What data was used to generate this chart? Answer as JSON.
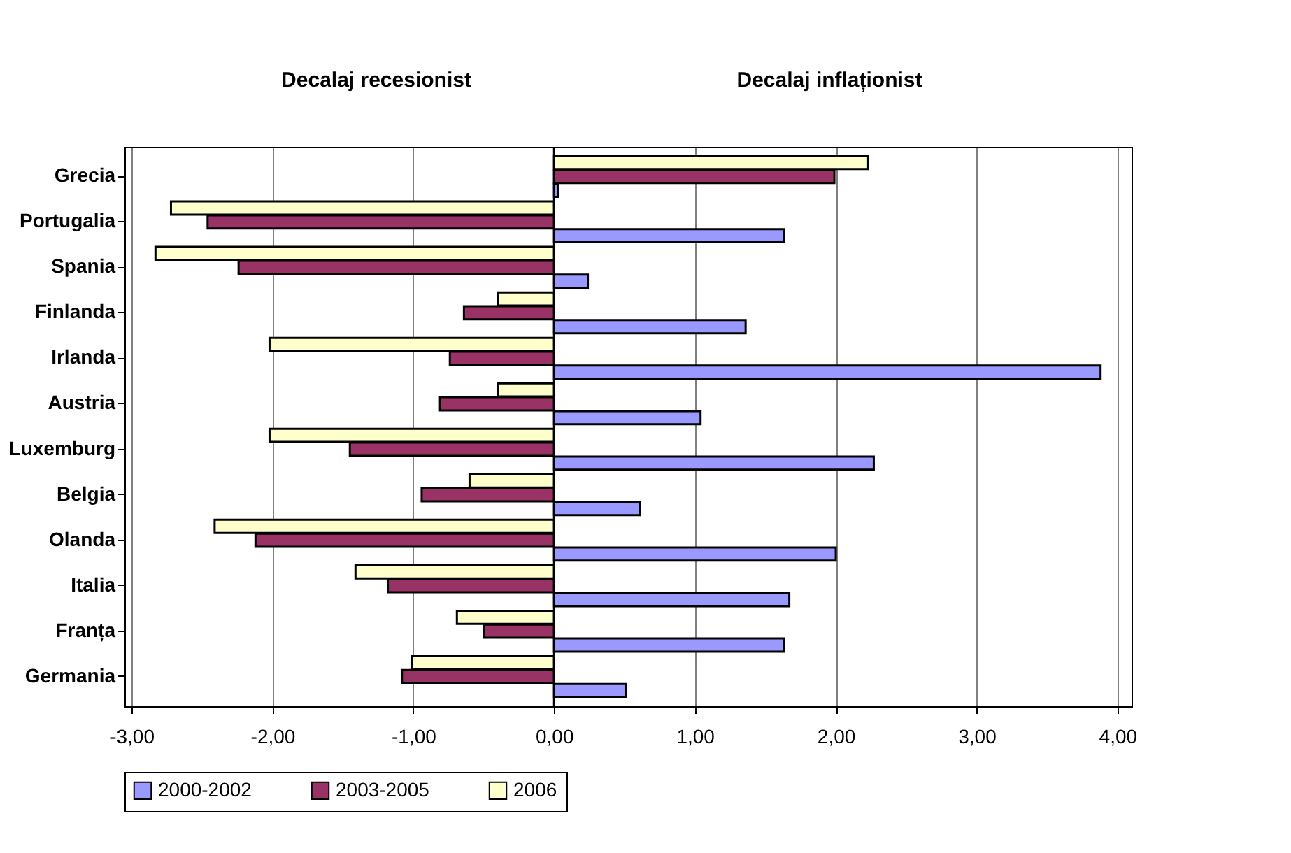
{
  "chart_data": {
    "type": "bar",
    "orientation": "horizontal",
    "annotations": [
      "Decalaj recesionist",
      "Decalaj inflaționist"
    ],
    "categories": [
      "Grecia",
      "Portugalia",
      "Spania",
      "Finlanda",
      "Irlanda",
      "Austria",
      "Luxemburg",
      "Belgia",
      "Olanda",
      "Italia",
      "Franța",
      "Germania"
    ],
    "series": [
      {
        "name": "2000-2002",
        "color": "#9999ff",
        "values": [
          0.03,
          1.63,
          0.24,
          1.36,
          3.88,
          1.04,
          2.27,
          0.61,
          2.0,
          1.67,
          1.63,
          0.51
        ]
      },
      {
        "name": "2003-2005",
        "color": "#993366",
        "values": [
          1.99,
          -2.46,
          -2.24,
          -0.64,
          -0.74,
          -0.81,
          -1.45,
          -0.94,
          -2.12,
          -1.18,
          -0.5,
          -1.08
        ]
      },
      {
        "name": "2006",
        "color": "#ffffcc",
        "values": [
          2.23,
          -2.72,
          -2.83,
          -0.4,
          -2.02,
          -0.4,
          -2.02,
          -0.6,
          -2.41,
          -1.41,
          -0.69,
          -1.01
        ]
      }
    ],
    "xlim": [
      -3.05,
      4.1
    ],
    "xticks": [
      {
        "value": -3,
        "label": "-3,00"
      },
      {
        "value": -2,
        "label": "-2,00"
      },
      {
        "value": -1,
        "label": "-1,00"
      },
      {
        "value": 0,
        "label": "0,00"
      },
      {
        "value": 1,
        "label": "1,00"
      },
      {
        "value": 2,
        "label": "2,00"
      },
      {
        "value": 3,
        "label": "3,00"
      },
      {
        "value": 4,
        "label": "4,00"
      }
    ],
    "grid": "x",
    "legend": "bottom"
  }
}
